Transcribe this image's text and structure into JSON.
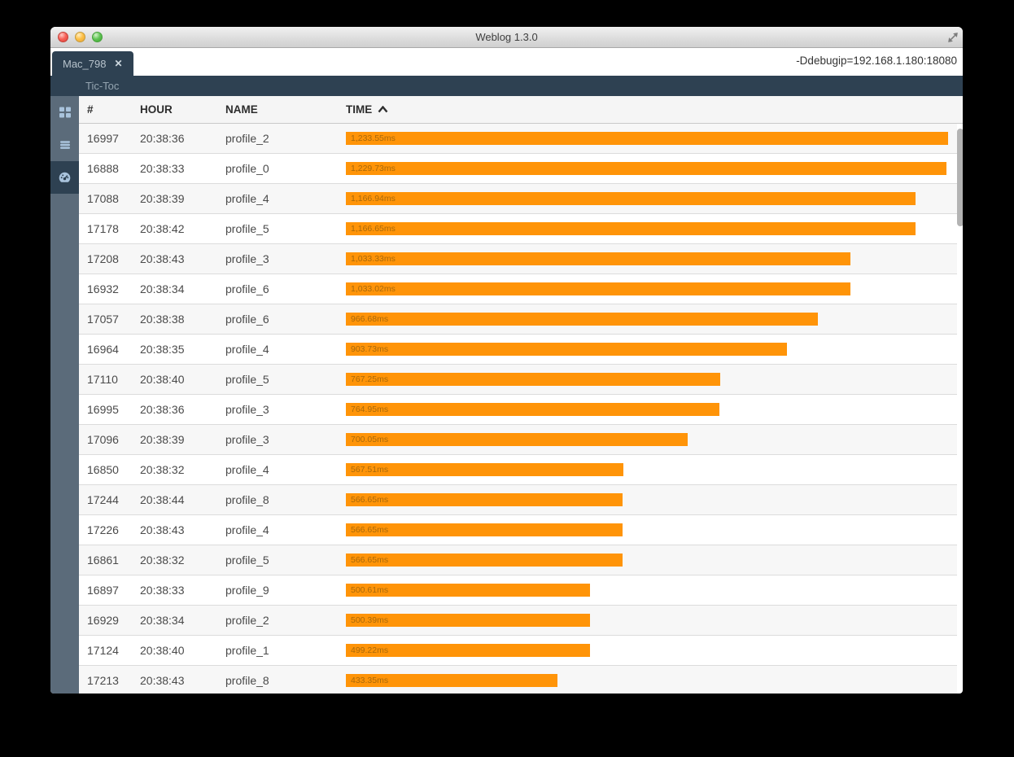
{
  "window": {
    "title": "Weblog 1.3.0",
    "tab": {
      "label": "Mac_798",
      "close_label": "✕"
    },
    "debug_param": "-Ddebugip=192.168.1.180:18080",
    "subheader_label": "Tic-Toc"
  },
  "sidebar": {
    "items": [
      {
        "icon": "grid-icon",
        "selected": false
      },
      {
        "icon": "list-icon",
        "selected": false
      },
      {
        "icon": "dashboard-icon",
        "selected": true
      }
    ]
  },
  "table": {
    "columns": [
      {
        "key": "number",
        "label": "#"
      },
      {
        "key": "hour",
        "label": "HOUR"
      },
      {
        "key": "name",
        "label": "NAME"
      },
      {
        "key": "time",
        "label": "TIME",
        "sorted": "asc"
      }
    ],
    "rows": [
      {
        "number": "16997",
        "hour": "20:38:36",
        "name": "profile_2",
        "time_ms": 1233.55,
        "time_label": "1,233.55ms"
      },
      {
        "number": "16888",
        "hour": "20:38:33",
        "name": "profile_0",
        "time_ms": 1229.73,
        "time_label": "1,229.73ms"
      },
      {
        "number": "17088",
        "hour": "20:38:39",
        "name": "profile_4",
        "time_ms": 1166.94,
        "time_label": "1,166.94ms"
      },
      {
        "number": "17178",
        "hour": "20:38:42",
        "name": "profile_5",
        "time_ms": 1166.65,
        "time_label": "1,166.65ms"
      },
      {
        "number": "17208",
        "hour": "20:38:43",
        "name": "profile_3",
        "time_ms": 1033.33,
        "time_label": "1,033.33ms"
      },
      {
        "number": "16932",
        "hour": "20:38:34",
        "name": "profile_6",
        "time_ms": 1033.02,
        "time_label": "1,033.02ms"
      },
      {
        "number": "17057",
        "hour": "20:38:38",
        "name": "profile_6",
        "time_ms": 966.68,
        "time_label": "966.68ms"
      },
      {
        "number": "16964",
        "hour": "20:38:35",
        "name": "profile_4",
        "time_ms": 903.73,
        "time_label": "903.73ms"
      },
      {
        "number": "17110",
        "hour": "20:38:40",
        "name": "profile_5",
        "time_ms": 767.25,
        "time_label": "767.25ms"
      },
      {
        "number": "16995",
        "hour": "20:38:36",
        "name": "profile_3",
        "time_ms": 764.95,
        "time_label": "764.95ms"
      },
      {
        "number": "17096",
        "hour": "20:38:39",
        "name": "profile_3",
        "time_ms": 700.05,
        "time_label": "700.05ms"
      },
      {
        "number": "16850",
        "hour": "20:38:32",
        "name": "profile_4",
        "time_ms": 567.51,
        "time_label": "567.51ms"
      },
      {
        "number": "17244",
        "hour": "20:38:44",
        "name": "profile_8",
        "time_ms": 566.65,
        "time_label": "566.65ms"
      },
      {
        "number": "17226",
        "hour": "20:38:43",
        "name": "profile_4",
        "time_ms": 566.65,
        "time_label": "566.65ms"
      },
      {
        "number": "16861",
        "hour": "20:38:32",
        "name": "profile_5",
        "time_ms": 566.65,
        "time_label": "566.65ms"
      },
      {
        "number": "16897",
        "hour": "20:38:33",
        "name": "profile_9",
        "time_ms": 500.61,
        "time_label": "500.61ms"
      },
      {
        "number": "16929",
        "hour": "20:38:34",
        "name": "profile_2",
        "time_ms": 500.39,
        "time_label": "500.39ms"
      },
      {
        "number": "17124",
        "hour": "20:38:40",
        "name": "profile_1",
        "time_ms": 499.22,
        "time_label": "499.22ms"
      },
      {
        "number": "17213",
        "hour": "20:38:43",
        "name": "profile_8",
        "time_ms": 433.35,
        "time_label": "433.35ms"
      }
    ]
  },
  "colors": {
    "accent_orange": "#FF9408",
    "bar_label": "#A8690A",
    "dark_slate": "#2E4152",
    "sidebar_slate": "#5B6B7A"
  }
}
